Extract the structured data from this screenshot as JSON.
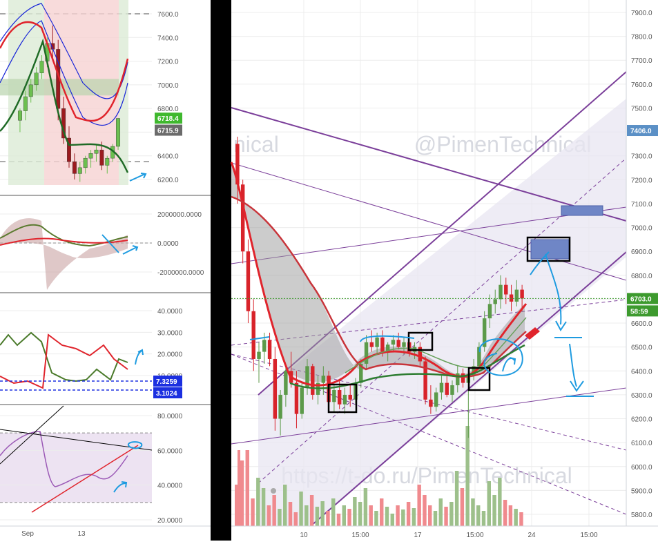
{
  "watermarks": [
    "@PimenTechnical",
    "https://t-do.ru/PimenTechnical",
    "nical"
  ],
  "colors": {
    "up": "#5c9a4a",
    "down": "#d8232a",
    "channel": "#7b3f9a",
    "annotation": "#1e9be0",
    "grid": "#ececec",
    "last_price": "#3d9a2e",
    "target_box": "#6f86c6"
  },
  "chart_data": [
    {
      "id": "main",
      "type": "candlestick",
      "title": "",
      "ylim": [
        5750,
        7950
      ],
      "y_ticks": [
        "7900.0",
        "7800.0",
        "7700.0",
        "7600.0",
        "7500.0",
        "7400.0",
        "7300.0",
        "7200.0",
        "7100.0",
        "7000.0",
        "6900.0",
        "6800.0",
        "6700.0",
        "6600.0",
        "6500.0",
        "6400.0",
        "6300.0",
        "6200.0",
        "6100.0",
        "6000.0",
        "5900.0",
        "5800.0"
      ],
      "x_ticks": [
        "10",
        "15:00",
        "17",
        "15:00",
        "24",
        "15:00"
      ],
      "price_badges": [
        {
          "label": "7406.0",
          "kind": "marker"
        },
        {
          "label": "6703.0",
          "kind": "last"
        },
        {
          "label": "58:59",
          "kind": "countdown"
        }
      ],
      "candles_ohlc": [
        [
          7350,
          7380,
          7100,
          7180
        ],
        [
          7180,
          7200,
          6850,
          6900
        ],
        [
          6900,
          6950,
          6600,
          6650
        ],
        [
          6650,
          6700,
          6400,
          6450
        ],
        [
          6450,
          6520,
          6350,
          6480
        ],
        [
          6480,
          6560,
          6430,
          6530
        ],
        [
          6530,
          6560,
          6420,
          6450
        ],
        [
          6450,
          6500,
          6150,
          6200
        ],
        [
          6200,
          6320,
          6130,
          6300
        ],
        [
          6300,
          6420,
          6250,
          6400
        ],
        [
          6400,
          6480,
          6330,
          6350
        ],
        [
          6350,
          6400,
          6160,
          6220
        ],
        [
          6220,
          6350,
          6200,
          6330
        ],
        [
          6330,
          6450,
          6300,
          6420
        ],
        [
          6420,
          6430,
          6280,
          6300
        ],
        [
          6300,
          6380,
          6260,
          6350
        ],
        [
          6350,
          6420,
          6300,
          6380
        ],
        [
          6380,
          6400,
          6250,
          6270
        ],
        [
          6270,
          6340,
          6230,
          6320
        ],
        [
          6320,
          6360,
          6240,
          6260
        ],
        [
          6260,
          6330,
          6220,
          6300
        ],
        [
          6300,
          6340,
          6250,
          6280
        ],
        [
          6280,
          6370,
          6260,
          6350
        ],
        [
          6350,
          6450,
          6330,
          6430
        ],
        [
          6430,
          6550,
          6410,
          6520
        ],
        [
          6520,
          6570,
          6480,
          6500
        ],
        [
          6500,
          6560,
          6470,
          6540
        ],
        [
          6540,
          6570,
          6460,
          6480
        ],
        [
          6480,
          6520,
          6440,
          6510
        ],
        [
          6510,
          6550,
          6480,
          6530
        ],
        [
          6530,
          6560,
          6490,
          6500
        ],
        [
          6500,
          6540,
          6470,
          6520
        ],
        [
          6520,
          6540,
          6460,
          6480
        ],
        [
          6480,
          6520,
          6450,
          6500
        ],
        [
          6500,
          6520,
          6420,
          6440
        ],
        [
          6440,
          6460,
          6260,
          6280
        ],
        [
          6280,
          6340,
          6220,
          6250
        ],
        [
          6250,
          6330,
          6230,
          6310
        ],
        [
          6310,
          6380,
          6280,
          6350
        ],
        [
          6350,
          6380,
          6290,
          6300
        ],
        [
          6300,
          6360,
          6270,
          6340
        ],
        [
          6340,
          6420,
          6310,
          6390
        ],
        [
          6390,
          6410,
          6330,
          6350
        ],
        [
          6350,
          6400,
          6120,
          6380
        ],
        [
          6380,
          6450,
          6360,
          6420
        ],
        [
          6420,
          6520,
          6400,
          6500
        ],
        [
          6500,
          6650,
          6480,
          6620
        ],
        [
          6620,
          6720,
          6580,
          6680
        ],
        [
          6680,
          6740,
          6640,
          6700
        ],
        [
          6700,
          6800,
          6660,
          6760
        ],
        [
          6760,
          6790,
          6680,
          6720
        ],
        [
          6720,
          6760,
          6650,
          6690
        ],
        [
          6690,
          6780,
          6670,
          6740
        ],
        [
          6740,
          6760,
          6650,
          6703
        ]
      ]
    },
    {
      "id": "left_price",
      "type": "candlestick",
      "title": "",
      "ylim": [
        6100,
        7750
      ],
      "y_ticks": [
        "7600.0",
        "7400.0",
        "7200.0",
        "7000.0",
        "6800.0",
        "6600.0",
        "6400.0",
        "6200.0"
      ],
      "x_ticks": [
        "Sep",
        "13"
      ],
      "price_badges": [
        {
          "label": "6718.4",
          "kind": "high"
        },
        {
          "label": "6715.9",
          "kind": "last"
        }
      ]
    },
    {
      "id": "left_osc1",
      "type": "line",
      "title": "",
      "ylim": [
        -3000000,
        3000000
      ],
      "y_ticks": [
        "2000000.0000",
        "0.0000",
        "-2000000.0000"
      ]
    },
    {
      "id": "left_osc2",
      "type": "line",
      "title": "",
      "ylim": [
        0,
        48
      ],
      "y_ticks": [
        "40.0000",
        "30.0000",
        "20.0000",
        "10.0000"
      ],
      "badges": [
        "7.3259",
        "3.1024"
      ]
    },
    {
      "id": "left_rsi",
      "type": "line",
      "title": "",
      "ylim": [
        18,
        85
      ],
      "y_ticks": [
        "80.0000",
        "60.0000",
        "40.0000",
        "20.0000"
      ]
    }
  ]
}
